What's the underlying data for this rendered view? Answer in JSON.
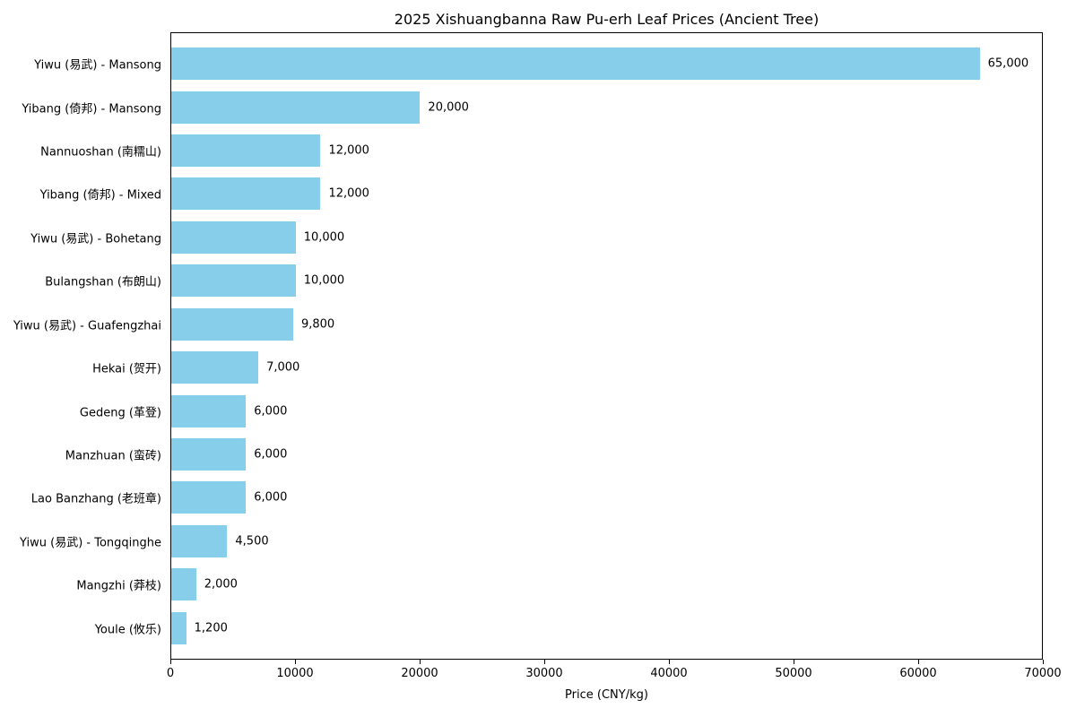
{
  "chart_data": {
    "type": "bar",
    "orientation": "horizontal",
    "title": "2025 Xishuangbanna Raw Pu-erh Leaf Prices (Ancient Tree)",
    "xlabel": "Price (CNY/kg)",
    "ylabel": "",
    "xlim": [
      0,
      70000
    ],
    "xticks": [
      0,
      10000,
      20000,
      30000,
      40000,
      50000,
      60000,
      70000
    ],
    "grid": false,
    "legend": false,
    "bar_color": "#87CEEB",
    "categories": [
      "Yiwu (易武) - Mansong",
      "Yibang (倚邦) - Mansong",
      "Nannuoshan (南糯山)",
      "Yibang (倚邦) - Mixed",
      "Yiwu (易武) - Bohetang",
      "Bulangshan (布朗山)",
      "Yiwu (易武) - Guafengzhai",
      "Hekai (贺开)",
      "Gedeng (革登)",
      "Manzhuan (蛮砖)",
      "Lao Banzhang (老班章)",
      "Yiwu (易武) - Tongqinghe",
      "Mangzhi (莽枝)",
      "Youle (攸乐)"
    ],
    "values": [
      65000,
      20000,
      12000,
      12000,
      10000,
      10000,
      9800,
      7000,
      6000,
      6000,
      6000,
      4500,
      2000,
      1200
    ],
    "value_labels": [
      "65,000",
      "20,000",
      "12,000",
      "12,000",
      "10,000",
      "10,000",
      "9,800",
      "7,000",
      "6,000",
      "6,000",
      "6,000",
      "4,500",
      "2,000",
      "1,200"
    ]
  }
}
